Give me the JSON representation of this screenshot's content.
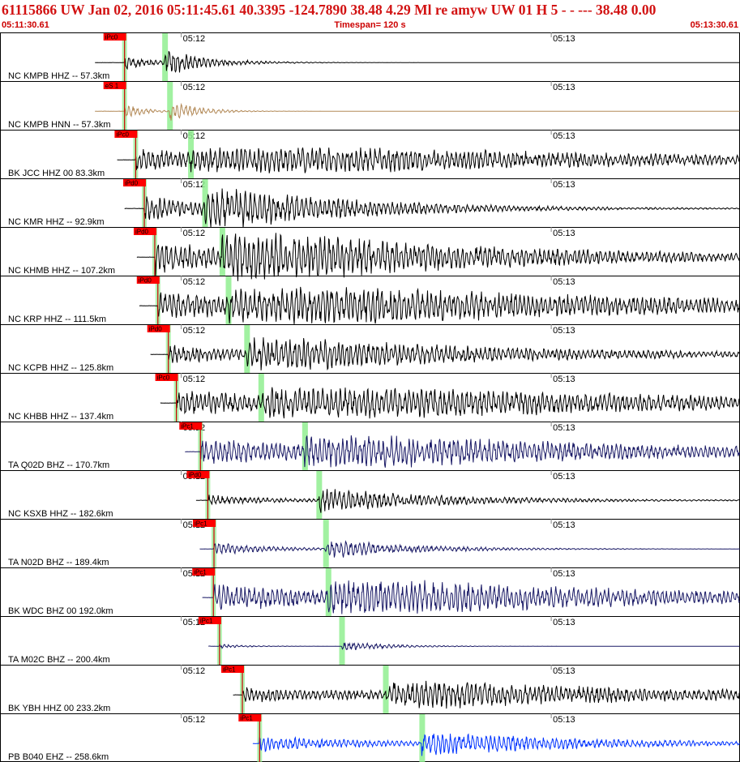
{
  "header": {
    "title": "61115866 UW Jan 02, 2016 05:11:45.61   40.3395 -124.7890 38.48 4.29 Ml re    amyw    UW 01 H    5  -  - --- 38.48 0.00",
    "start_time": "05:11:30.61",
    "timespan": "Timespan= 120 s",
    "end_time": "05:13:30.61"
  },
  "colors": {
    "header_text": "#d21212",
    "trace_default": "#000000",
    "pick_flag": "#ff0000",
    "pick_line": "#cc0000",
    "s_marker": "#90ee90",
    "grid": "#888888"
  },
  "chart_data": {
    "type": "line",
    "title": "61115866 UW Jan 02, 2016 05:11:45.61",
    "x_axis": {
      "start": "05:11:30.61",
      "end": "05:13:30.61",
      "span_s": 120,
      "tick_labels": [
        {
          "t": 29.39,
          "label": "05:12"
        },
        {
          "t": 89.39,
          "label": "05:13"
        }
      ]
    },
    "origin_offset_s": 15.0,
    "series": [
      {
        "name": "NC KMPB HHZ -- 57.3km",
        "color": "#000000",
        "pick_label": "iPc0",
        "p_s": 20.2,
        "s_s": 26.7,
        "start_s": 15.4,
        "amp": 0.45,
        "decay": 0.06,
        "ratio": 0.5
      },
      {
        "name": "NC KMPB HNN -- 57.3km",
        "color": "#b38a58",
        "pick_label": "eS 1",
        "p_s": 20.2,
        "s_s": 27.5,
        "start_s": 15.4,
        "amp": 0.42,
        "decay": 0.1,
        "ratio": 0.6
      },
      {
        "name": "BK JCC HHZ 00 83.3km",
        "color": "#000000",
        "pick_label": "iPc0",
        "p_s": 22.0,
        "s_s": 30.9,
        "start_s": 19.0,
        "amp": 0.42,
        "decay": 0.006,
        "ratio": 0.9
      },
      {
        "name": "NC KMR HHZ -- 92.9km",
        "color": "#000000",
        "pick_label": "iPd0",
        "p_s": 23.4,
        "s_s": 33.2,
        "start_s": 20.2,
        "amp": 0.7,
        "decay": 0.018,
        "ratio": 0.6
      },
      {
        "name": "NC KHMB HHZ -- 107.2km",
        "color": "#000000",
        "pick_label": "iPd0",
        "p_s": 25.1,
        "s_s": 36.0,
        "start_s": 22.2,
        "amp": 0.8,
        "decay": 0.01,
        "ratio": 0.7
      },
      {
        "name": "NC KRP HHZ -- 111.5km",
        "color": "#000000",
        "pick_label": "iPd0",
        "p_s": 25.6,
        "s_s": 37.0,
        "start_s": 22.6,
        "amp": 0.6,
        "decay": 0.006,
        "ratio": 0.8
      },
      {
        "name": "NC KCPB HHZ -- 125.8km",
        "color": "#000000",
        "pick_label": "iPd0",
        "p_s": 27.3,
        "s_s": 40.0,
        "start_s": 24.4,
        "amp": 0.55,
        "decay": 0.01,
        "ratio": 0.55
      },
      {
        "name": "NC KHBB HHZ -- 137.4km",
        "color": "#000000",
        "pick_label": "iPc0",
        "p_s": 28.6,
        "s_s": 42.3,
        "start_s": 26.0,
        "amp": 0.5,
        "decay": 0.006,
        "ratio": 0.9
      },
      {
        "name": "TA Q02D BHZ -- 170.7km",
        "color": "#1a1a66",
        "pick_label": "iPc1",
        "p_s": 32.5,
        "s_s": 49.4,
        "start_s": 30.0,
        "amp": 0.52,
        "decay": 0.008,
        "ratio": 0.9
      },
      {
        "name": "NC KSXB HHZ -- 182.6km",
        "color": "#000000",
        "pick_label": "iPd0",
        "p_s": 33.7,
        "s_s": 51.7,
        "start_s": 31.8,
        "amp": 0.42,
        "decay": 0.02,
        "ratio": 0.4
      },
      {
        "name": "TA N02D BHZ -- 189.4km",
        "color": "#1a1a66",
        "pick_label": "iPc1",
        "p_s": 34.7,
        "s_s": 52.8,
        "start_s": 32.4,
        "amp": 0.35,
        "decay": 0.03,
        "ratio": 0.6
      },
      {
        "name": "BK WDC BHZ 00 192.0km",
        "color": "#1a1a66",
        "pick_label": "iPc1",
        "p_s": 34.6,
        "s_s": 53.2,
        "start_s": 32.8,
        "amp": 0.55,
        "decay": 0.008,
        "ratio": 0.9
      },
      {
        "name": "TA M02C BHZ -- 200.4km",
        "color": "#1a1a66",
        "pick_label": "iPc1",
        "p_s": 35.6,
        "s_s": 55.4,
        "start_s": 33.8,
        "amp": 0.2,
        "decay": 0.06,
        "ratio": 0.3
      },
      {
        "name": "BK YBH HHZ 00 233.2km",
        "color": "#000000",
        "pick_label": "iPc1",
        "p_s": 39.3,
        "s_s": 62.5,
        "start_s": 37.8,
        "amp": 0.45,
        "decay": 0.008,
        "ratio": 0.6
      },
      {
        "name": "PB B040 EHZ -- 258.6km",
        "color": "#0033ff",
        "pick_label": "iPc1",
        "p_s": 42.1,
        "s_s": 68.4,
        "start_s": 41.0,
        "amp": 0.4,
        "decay": 0.015,
        "ratio": 0.7
      }
    ]
  }
}
